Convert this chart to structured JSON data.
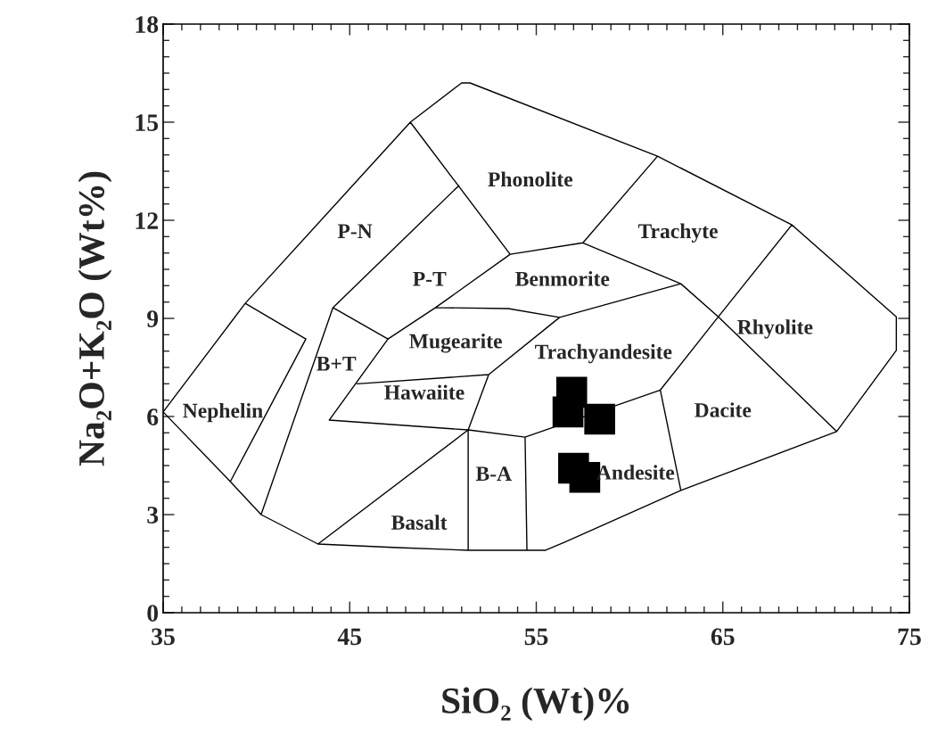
{
  "chart_data": {
    "type": "line",
    "xlabel": "SiO₂ (Wt)%",
    "ylabel": "Na₂O+K₂O (Wt%)",
    "xlim": [
      35,
      75
    ],
    "ylim": [
      0,
      18
    ],
    "xticks": [
      35,
      45,
      55,
      65,
      75
    ],
    "yticks": [
      0,
      3,
      6,
      9,
      12,
      15,
      18
    ],
    "grid": false,
    "legend": false,
    "series": [
      {
        "color": "#000000",
        "x": [
          35.0,
          39.4,
          48.25,
          51.0,
          51.45,
          61.5,
          68.7,
          74.3,
          null,
          74.3,
          74.3,
          null,
          35.0,
          38.6,
          40.25,
          43.3,
          47.55,
          51.35,
          55.5,
          56.5,
          62.75,
          71.1,
          74.3,
          null,
          38.6,
          42.65,
          null,
          39.4,
          42.65,
          null,
          40.25,
          44.1,
          50.85,
          null,
          48.25,
          53.6,
          null,
          44.1,
          47.05,
          null,
          43.9,
          47.05,
          49.6,
          53.6,
          null,
          53.6,
          57.5,
          61.5,
          null,
          57.5,
          62.75,
          64.76,
          68.7,
          null,
          64.76,
          71.1,
          null,
          49.6,
          53.5,
          56.25,
          62.75,
          null,
          51.35,
          52.45,
          56.25,
          null,
          45.4,
          52.45,
          null,
          43.9,
          51.35,
          54.4,
          61.65,
          null,
          61.65,
          64.76,
          null,
          61.65,
          62.75,
          null,
          51.35,
          51.35,
          null,
          54.4,
          54.5,
          null,
          43.3,
          51.35
        ],
        "values": [
          6.14,
          9.46,
          15.0,
          16.2,
          16.2,
          13.96,
          11.86,
          9.05,
          null,
          9.05,
          8.02,
          null,
          6.14,
          4.01,
          3.0,
          2.1,
          1.99,
          1.91,
          1.91,
          2.15,
          3.74,
          5.54,
          8.02,
          null,
          4.01,
          8.37,
          null,
          9.46,
          8.37,
          null,
          3.0,
          9.33,
          13.06,
          null,
          15.0,
          10.96,
          null,
          9.33,
          8.37,
          null,
          5.89,
          8.37,
          9.33,
          10.96,
          null,
          10.96,
          11.31,
          13.96,
          null,
          11.31,
          10.06,
          9.05,
          11.86,
          null,
          9.05,
          5.54,
          null,
          9.33,
          9.3,
          9.03,
          10.06,
          null,
          5.59,
          7.28,
          9.03,
          null,
          7.0,
          7.28,
          null,
          5.89,
          5.59,
          5.37,
          6.81,
          null,
          6.81,
          9.05,
          null,
          6.81,
          3.74,
          null,
          5.59,
          1.91,
          null,
          5.37,
          1.91,
          null,
          2.1,
          5.59
        ]
      },
      {
        "type": "scatter",
        "color": "#000000",
        "marker": "square",
        "x": [
          56.9,
          56.7,
          58.4,
          57.0,
          57.6
        ],
        "values": [
          6.74,
          6.14,
          5.92,
          4.42,
          4.14
        ]
      }
    ],
    "annotations": [
      "Phonolite",
      "Trachyte",
      "P-N",
      "P-T",
      "Benmorite",
      "Rhyolite",
      "Mugearite",
      "B+T",
      "Trachyandesite",
      "Hawaiite",
      "Nephelin",
      "Dacite",
      "B-A",
      "Andesite",
      "Basalt"
    ]
  }
}
